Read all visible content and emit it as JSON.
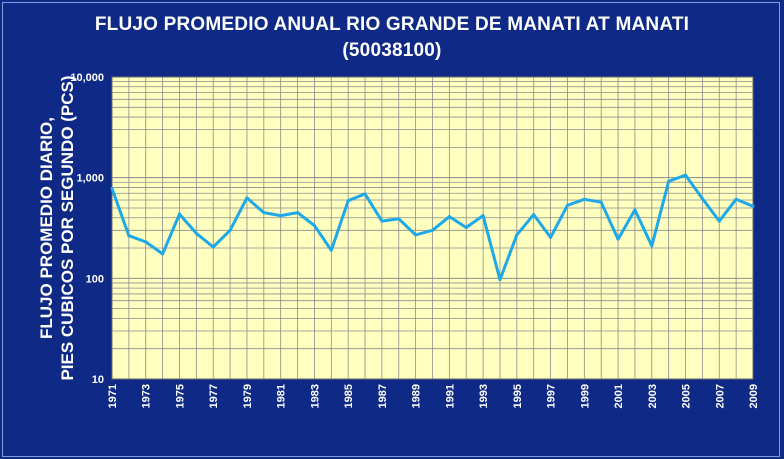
{
  "chart_data": {
    "type": "line",
    "title": "FLUJO PROMEDIO ANUAL RIO GRANDE DE MANATI AT MANATI",
    "subtitle": "(50038100)",
    "ylabel_line1": "FLUJO PROMEDIO DIARIO,",
    "ylabel_line2": "PIES CUBICOS POR SEGUNDO (PCS)",
    "xlabel": "",
    "yscale": "log",
    "ylim": [
      10,
      10000
    ],
    "xlim": [
      1971,
      2009
    ],
    "grid": true,
    "y_tick_labels": [
      "10,000",
      "1,000",
      "100",
      "10"
    ],
    "x_tick_labels": [
      "1971",
      "1973",
      "1975",
      "1977",
      "1979",
      "1981",
      "1983",
      "1985",
      "1987",
      "1989",
      "1991",
      "1993",
      "1995",
      "1997",
      "1999",
      "2001",
      "2003",
      "2005",
      "2007",
      "2009"
    ],
    "series": [
      {
        "x": [
          1971,
          1972,
          1973,
          1974,
          1975,
          1976,
          1977,
          1978,
          1979,
          1980,
          1981,
          1982,
          1983,
          1984,
          1985,
          1986,
          1987,
          1988,
          1989,
          1990,
          1991,
          1992,
          1993,
          1994,
          1995,
          1996,
          1997,
          1998,
          1999,
          2000,
          2001,
          2002,
          2003,
          2004,
          2005,
          2006,
          2007,
          2008,
          2009
        ],
        "values": [
          780,
          265,
          230,
          175,
          435,
          280,
          205,
          300,
          630,
          450,
          420,
          450,
          335,
          190,
          590,
          690,
          370,
          390,
          270,
          300,
          410,
          320,
          420,
          97,
          270,
          430,
          255,
          530,
          610,
          570,
          245,
          480,
          210,
          920,
          1060,
          620,
          370,
          610,
          520
        ]
      }
    ]
  },
  "colors": {
    "background": "#0f2a86",
    "plot_area": "#ffffc0",
    "line": "#1fa8e6",
    "grid": "#8c8c8c",
    "text": "#ffffff"
  }
}
